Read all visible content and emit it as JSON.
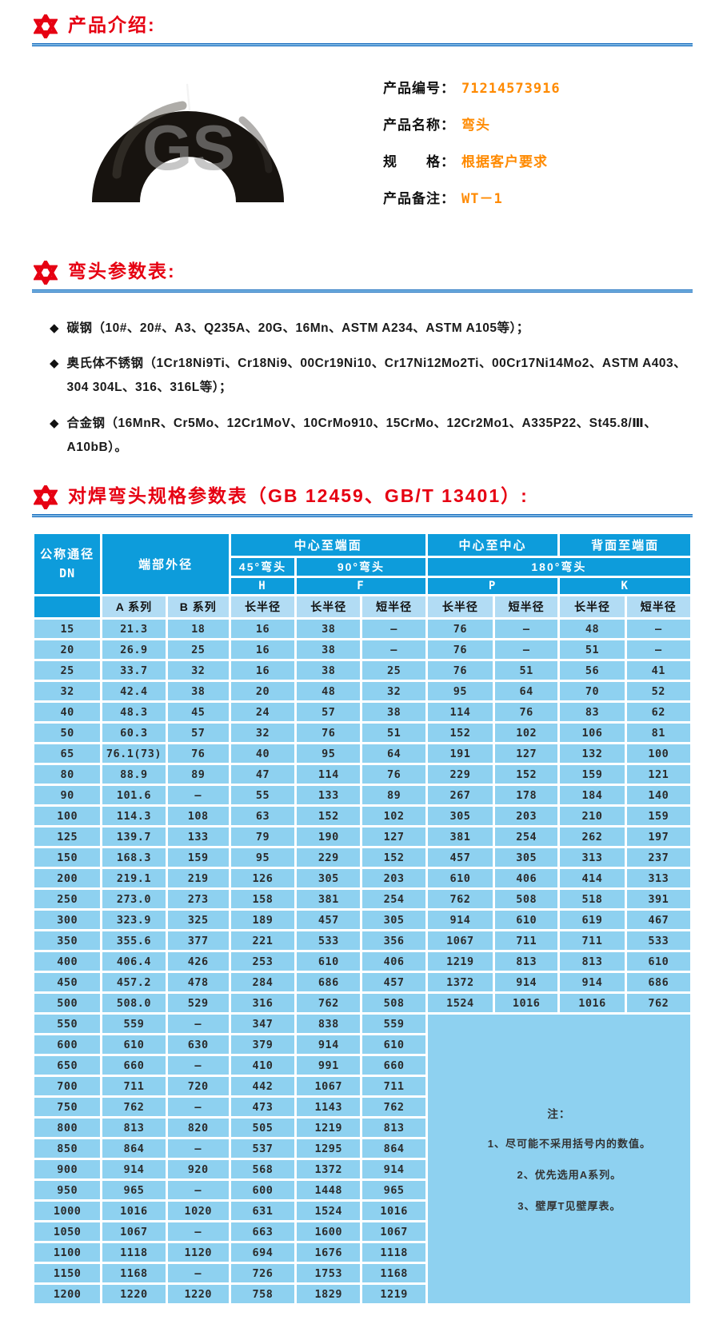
{
  "colors": {
    "accent_red": "#e60012",
    "rule_blue": "#1a6ebf",
    "header_blue": "#0d9cdb",
    "subheader_blue": "#b2dcf4",
    "row_blue": "#8ed1f0",
    "value_orange": "#ff8a00"
  },
  "sections": {
    "intro_title": "产品介绍:",
    "params_title": "弯头参数表:",
    "spec_title": "对焊弯头规格参数表（GB 12459、GB/T 13401）:"
  },
  "product": {
    "watermark": "GS",
    "fields": [
      {
        "label": "产品编号：",
        "value": "71214573916"
      },
      {
        "label": "产品名称：",
        "value": "弯头"
      },
      {
        "label": "规　　格：",
        "value": "根据客户要求"
      },
      {
        "label": "产品备注：",
        "value": "WT－1"
      }
    ]
  },
  "materials": {
    "marker": "◆",
    "items": [
      "碳钢（10#、20#、A3、Q235A、20G、16Mn、ASTM A234、ASTM A105等）；",
      "奥氏体不锈钢（1Cr18Ni9Ti、Cr18Ni9、00Cr19Ni10、Cr17Ni12Mo2Ti、00Cr17Ni14Mo2、ASTM A403、304 304L、316、316L等）；",
      "合金钢（16MnR、Cr5Mo、12Cr1MoV、10CrMo910、15CrMo、12Cr2Mo1、A335P22、St45.8/Ⅲ、A10bB）。"
    ]
  },
  "spec_table": {
    "header": {
      "dn": [
        "公称通径",
        "DN"
      ],
      "end_od": "端部外径",
      "center_to_face": "中心至端面",
      "center_to_center": "中心至中心",
      "back_to_face": "背面至端面",
      "elbow45": "45°弯头",
      "elbow90": "90°弯头",
      "elbow180": "180°弯头",
      "letters": [
        "H",
        "F",
        "P",
        "K"
      ],
      "series": [
        "A 系列",
        "B 系列"
      ],
      "radius_cols": [
        "长半径",
        "长半径",
        "短半径",
        "长半径",
        "短半径",
        "长半径",
        "短半径"
      ]
    },
    "note_start_row": 19,
    "note": {
      "title": "注：",
      "items": [
        "1、尽可能不采用括号内的数值。",
        "2、优先选用A系列。",
        "3、壁厚T见壁厚表。"
      ]
    },
    "rows": [
      [
        "15",
        "21.3",
        "18",
        "16",
        "38",
        "—",
        "76",
        "—",
        "48",
        "—"
      ],
      [
        "20",
        "26.9",
        "25",
        "16",
        "38",
        "—",
        "76",
        "—",
        "51",
        "—"
      ],
      [
        "25",
        "33.7",
        "32",
        "16",
        "38",
        "25",
        "76",
        "51",
        "56",
        "41"
      ],
      [
        "32",
        "42.4",
        "38",
        "20",
        "48",
        "32",
        "95",
        "64",
        "70",
        "52"
      ],
      [
        "40",
        "48.3",
        "45",
        "24",
        "57",
        "38",
        "114",
        "76",
        "83",
        "62"
      ],
      [
        "50",
        "60.3",
        "57",
        "32",
        "76",
        "51",
        "152",
        "102",
        "106",
        "81"
      ],
      [
        "65",
        "76.1(73)",
        "76",
        "40",
        "95",
        "64",
        "191",
        "127",
        "132",
        "100"
      ],
      [
        "80",
        "88.9",
        "89",
        "47",
        "114",
        "76",
        "229",
        "152",
        "159",
        "121"
      ],
      [
        "90",
        "101.6",
        "—",
        "55",
        "133",
        "89",
        "267",
        "178",
        "184",
        "140"
      ],
      [
        "100",
        "114.3",
        "108",
        "63",
        "152",
        "102",
        "305",
        "203",
        "210",
        "159"
      ],
      [
        "125",
        "139.7",
        "133",
        "79",
        "190",
        "127",
        "381",
        "254",
        "262",
        "197"
      ],
      [
        "150",
        "168.3",
        "159",
        "95",
        "229",
        "152",
        "457",
        "305",
        "313",
        "237"
      ],
      [
        "200",
        "219.1",
        "219",
        "126",
        "305",
        "203",
        "610",
        "406",
        "414",
        "313"
      ],
      [
        "250",
        "273.0",
        "273",
        "158",
        "381",
        "254",
        "762",
        "508",
        "518",
        "391"
      ],
      [
        "300",
        "323.9",
        "325",
        "189",
        "457",
        "305",
        "914",
        "610",
        "619",
        "467"
      ],
      [
        "350",
        "355.6",
        "377",
        "221",
        "533",
        "356",
        "1067",
        "711",
        "711",
        "533"
      ],
      [
        "400",
        "406.4",
        "426",
        "253",
        "610",
        "406",
        "1219",
        "813",
        "813",
        "610"
      ],
      [
        "450",
        "457.2",
        "478",
        "284",
        "686",
        "457",
        "1372",
        "914",
        "914",
        "686"
      ],
      [
        "500",
        "508.0",
        "529",
        "316",
        "762",
        "508",
        "1524",
        "1016",
        "1016",
        "762"
      ],
      [
        "550",
        "559",
        "—",
        "347",
        "838",
        "559"
      ],
      [
        "600",
        "610",
        "630",
        "379",
        "914",
        "610"
      ],
      [
        "650",
        "660",
        "—",
        "410",
        "991",
        "660"
      ],
      [
        "700",
        "711",
        "720",
        "442",
        "1067",
        "711"
      ],
      [
        "750",
        "762",
        "—",
        "473",
        "1143",
        "762"
      ],
      [
        "800",
        "813",
        "820",
        "505",
        "1219",
        "813"
      ],
      [
        "850",
        "864",
        "—",
        "537",
        "1295",
        "864"
      ],
      [
        "900",
        "914",
        "920",
        "568",
        "1372",
        "914"
      ],
      [
        "950",
        "965",
        "—",
        "600",
        "1448",
        "965"
      ],
      [
        "1000",
        "1016",
        "1020",
        "631",
        "1524",
        "1016"
      ],
      [
        "1050",
        "1067",
        "—",
        "663",
        "1600",
        "1067"
      ],
      [
        "1100",
        "1118",
        "1120",
        "694",
        "1676",
        "1118"
      ],
      [
        "1150",
        "1168",
        "—",
        "726",
        "1753",
        "1168"
      ],
      [
        "1200",
        "1220",
        "1220",
        "758",
        "1829",
        "1219"
      ]
    ]
  }
}
